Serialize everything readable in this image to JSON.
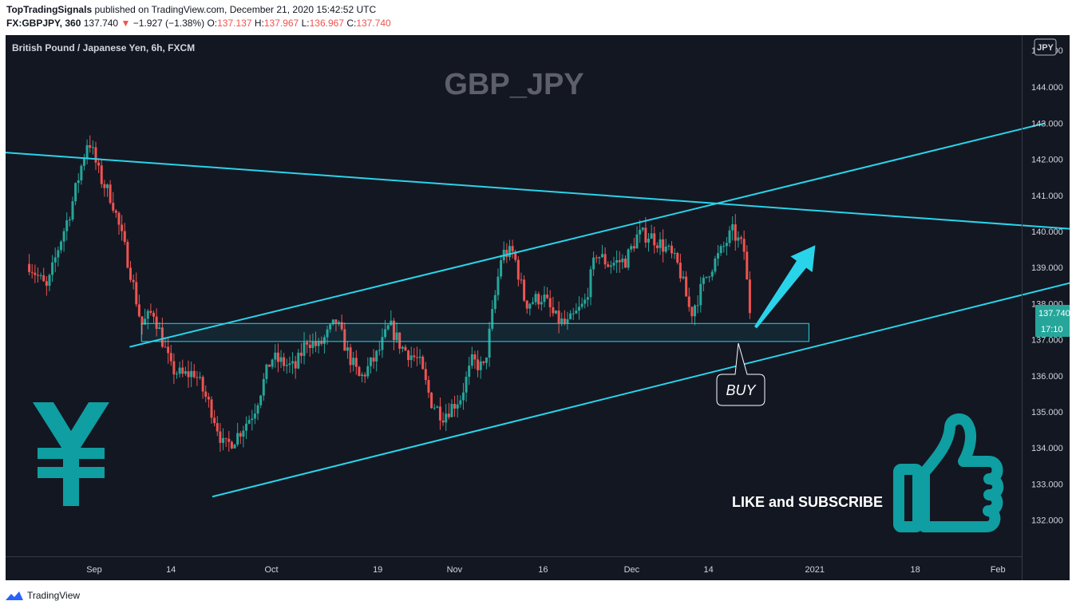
{
  "header": {
    "author": "TopTradingSignals",
    "published": "published on TradingView.com, December 21, 2020 15:42:52 UTC",
    "symbol": "FX:GBPJPY, 360",
    "last": "137.740",
    "arrow": "▼",
    "change": "−1.927 (−1.38%)",
    "o_label": "O:",
    "o": "137.137",
    "h_label": "H:",
    "h": "137.967",
    "l_label": "L:",
    "l": "136.967",
    "c_label": "C:",
    "c": "137.740"
  },
  "chart_data": {
    "type": "candlestick",
    "legend": "British Pound / Japanese Yen, 6h, FXCM",
    "watermark": "GBP_JPY",
    "currency_badge": "JPY",
    "price_scale_top_label": "145.000",
    "last_price_label": "137.740",
    "countdown_label": "17:10",
    "ylim": [
      131.0,
      145.8
    ],
    "y_ticks": [
      "144.000",
      "143.000",
      "142.000",
      "141.000",
      "140.000",
      "139.000",
      "138.000",
      "137.000",
      "136.000",
      "135.000",
      "134.000",
      "133.000",
      "132.000"
    ],
    "x_ticks": [
      "Sep",
      "14",
      "Oct",
      "19",
      "Nov",
      "16",
      "Dec",
      "14",
      "2021",
      "18",
      "Feb"
    ],
    "price_path": [
      [
        "2020-08-21",
        139.1
      ],
      [
        "2020-08-24",
        138.4
      ],
      [
        "2020-08-26",
        139.6
      ],
      [
        "2020-08-28",
        140.6
      ],
      [
        "2020-08-31",
        142.6
      ],
      [
        "2020-09-02",
        141.5
      ],
      [
        "2020-09-04",
        140.9
      ],
      [
        "2020-09-07",
        139.0
      ],
      [
        "2020-09-09",
        137.4
      ],
      [
        "2020-09-11",
        137.8
      ],
      [
        "2020-09-14",
        136.2
      ],
      [
        "2020-09-16",
        136.0
      ],
      [
        "2020-09-18",
        136.1
      ],
      [
        "2020-09-21",
        135.0
      ],
      [
        "2020-09-23",
        134.0
      ],
      [
        "2020-09-25",
        134.3
      ],
      [
        "2020-09-28",
        135.0
      ],
      [
        "2020-10-01",
        136.5
      ],
      [
        "2020-10-05",
        136.2
      ],
      [
        "2020-10-07",
        137.0
      ],
      [
        "2020-10-09",
        136.8
      ],
      [
        "2020-10-12",
        137.5
      ],
      [
        "2020-10-14",
        136.6
      ],
      [
        "2020-10-16",
        135.9
      ],
      [
        "2020-10-19",
        136.6
      ],
      [
        "2020-10-21",
        137.4
      ],
      [
        "2020-10-23",
        136.8
      ],
      [
        "2020-10-26",
        136.4
      ],
      [
        "2020-10-28",
        135.3
      ],
      [
        "2020-10-30",
        134.9
      ],
      [
        "2020-11-02",
        135.4
      ],
      [
        "2020-11-04",
        136.4
      ],
      [
        "2020-11-06",
        136.2
      ],
      [
        "2020-11-09",
        139.4
      ],
      [
        "2020-11-11",
        139.4
      ],
      [
        "2020-11-13",
        138.0
      ],
      [
        "2020-11-16",
        138.2
      ],
      [
        "2020-11-18",
        137.6
      ],
      [
        "2020-11-20",
        137.4
      ],
      [
        "2020-11-23",
        138.0
      ],
      [
        "2020-11-25",
        139.4
      ],
      [
        "2020-11-27",
        139.1
      ],
      [
        "2020-11-30",
        139.2
      ],
      [
        "2020-12-02",
        139.9
      ],
      [
        "2020-12-04",
        139.9
      ],
      [
        "2020-12-07",
        139.5
      ],
      [
        "2020-12-09",
        139.0
      ],
      [
        "2020-12-11",
        137.7
      ],
      [
        "2020-12-14",
        138.9
      ],
      [
        "2020-12-16",
        139.4
      ],
      [
        "2020-12-18",
        140.0
      ],
      [
        "2020-12-20",
        139.5
      ],
      [
        "2020-12-21",
        137.7
      ]
    ],
    "candle_count": 250,
    "colors": {
      "up": "#26a69a",
      "down": "#ef5350",
      "background": "#131722",
      "lines": "#29d4ea",
      "icons": "#0f9ea1"
    },
    "drawings": {
      "trendlines": 4,
      "zone": [
        136.95,
        137.45
      ],
      "projection_arrow_target": 139.6
    },
    "callout": "BUY",
    "cta": "LIKE and SUBSCRIBE"
  },
  "footer": {
    "brand": "TradingView"
  }
}
